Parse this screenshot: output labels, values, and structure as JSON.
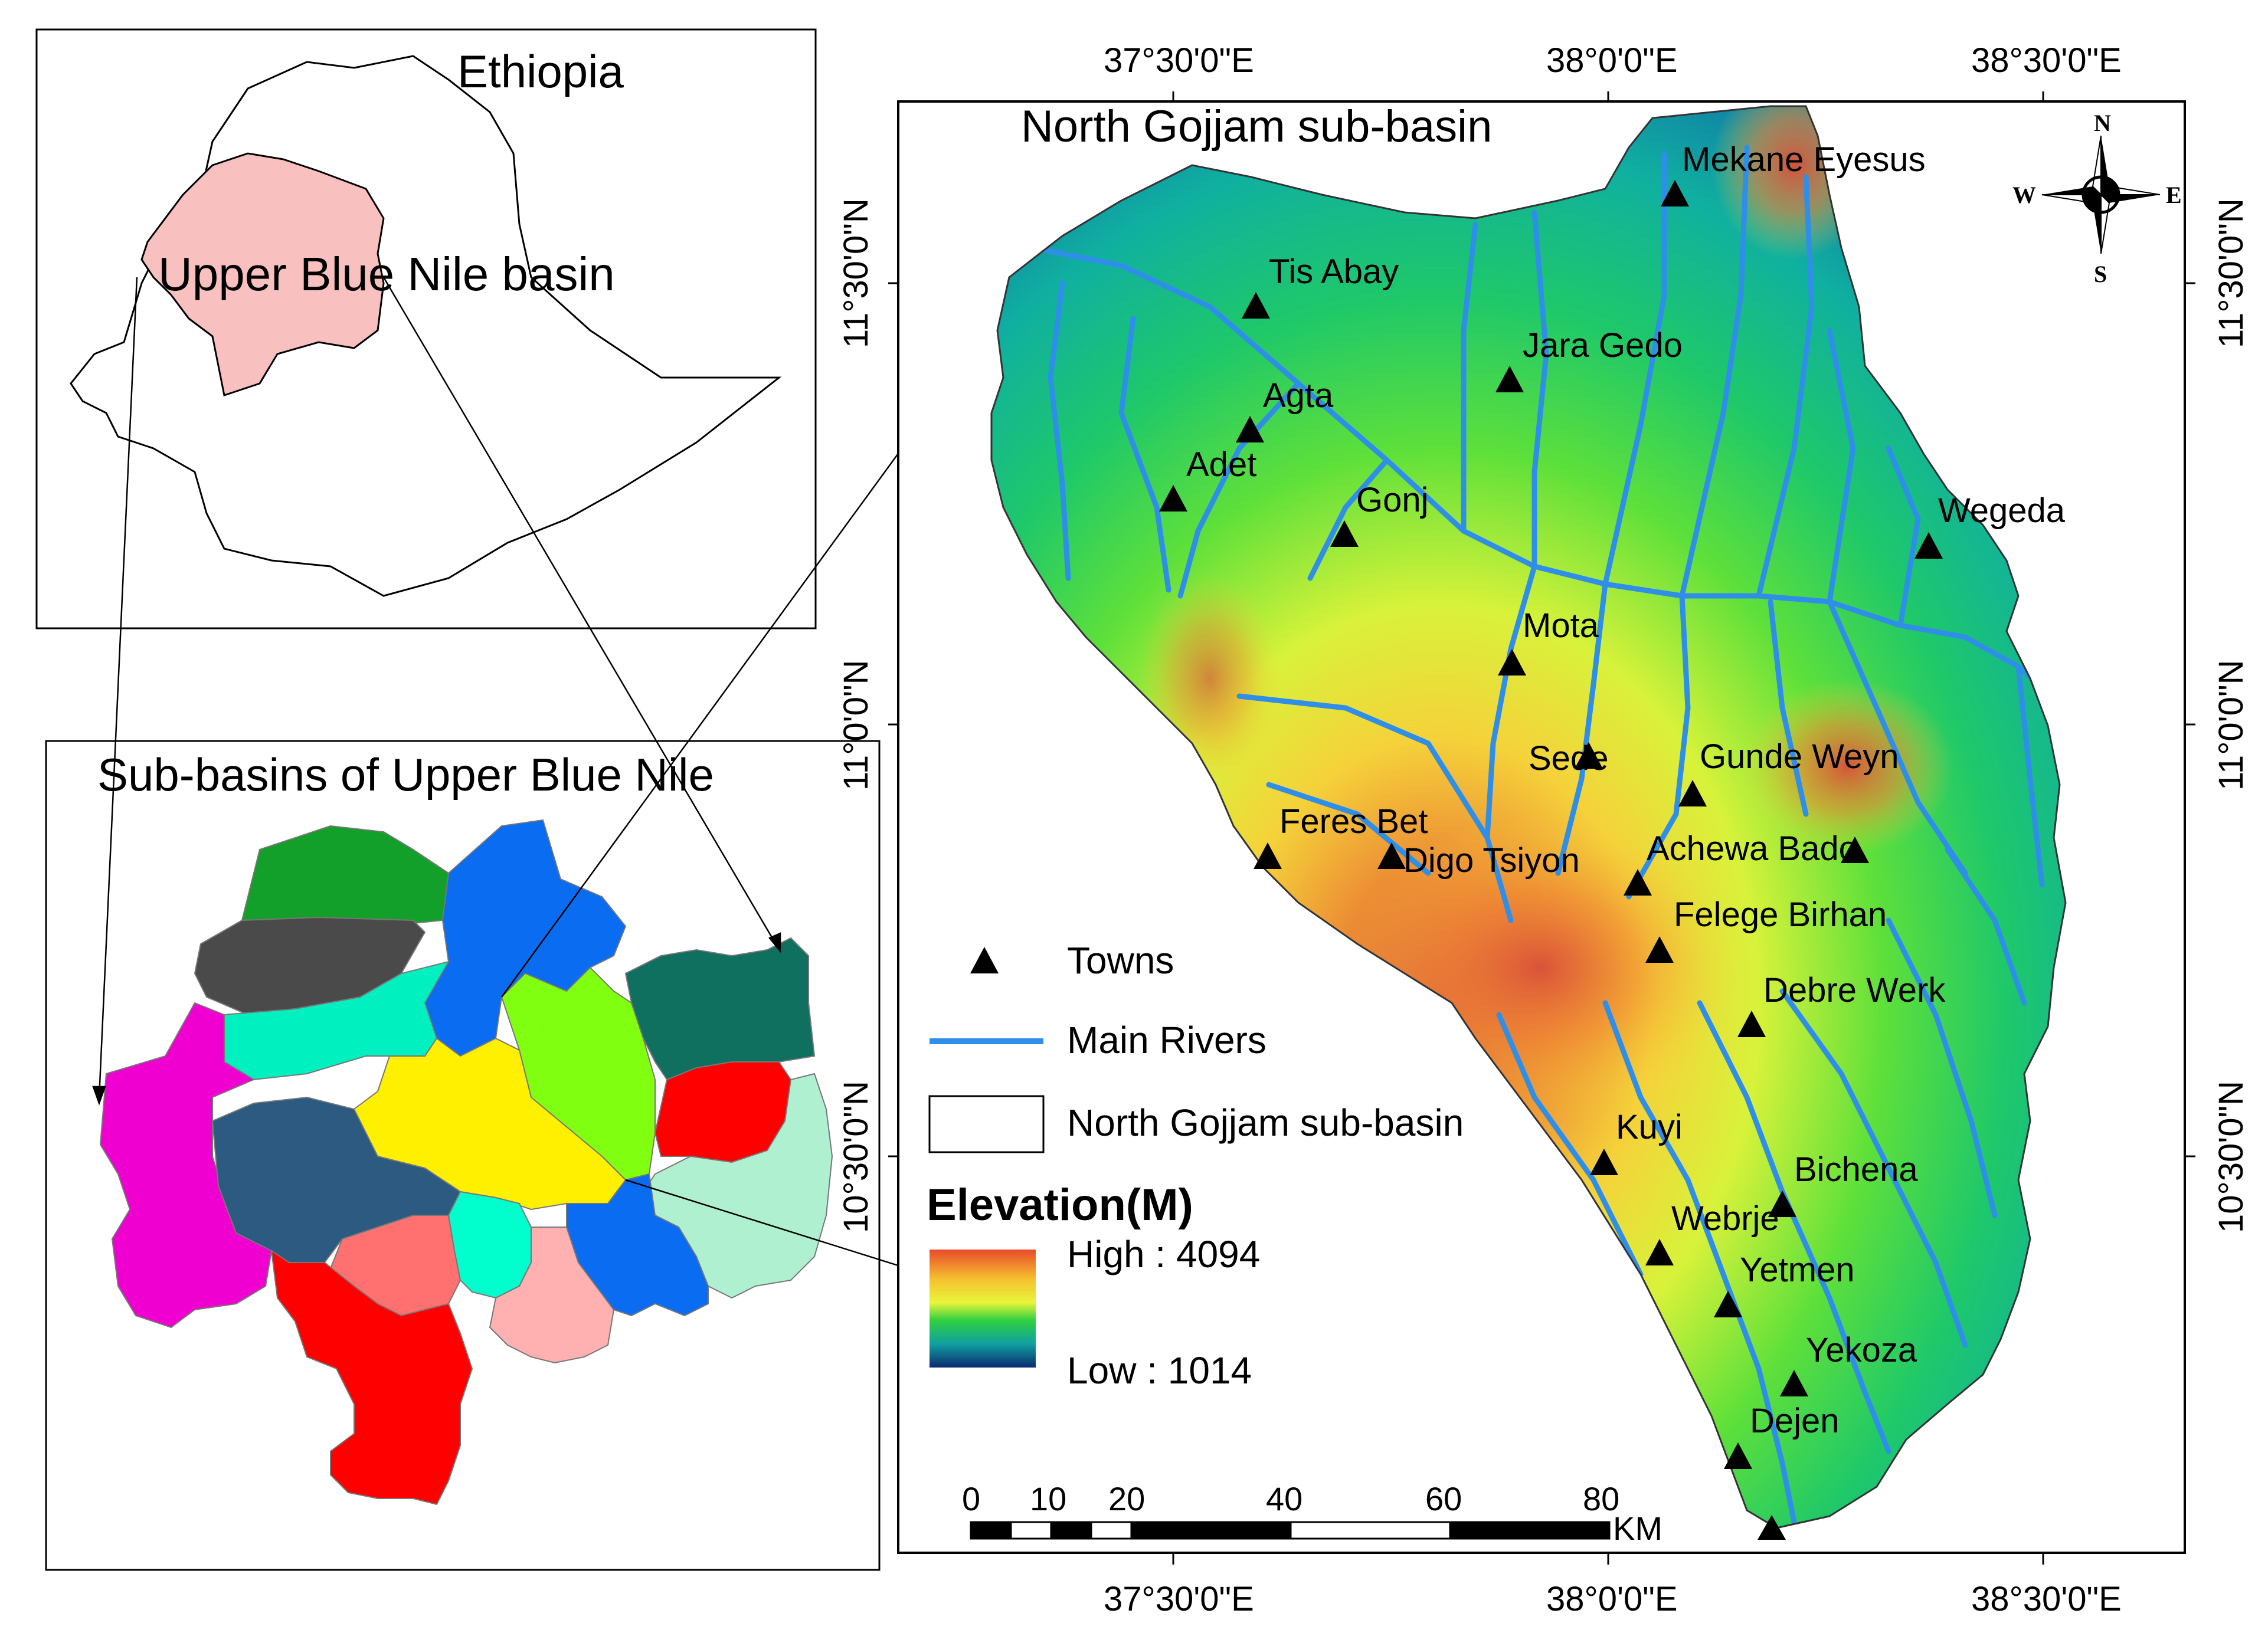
{
  "inset_ethiopia": {
    "country_label": "Ethiopia",
    "basin_label": "Upper Blue Nile basin"
  },
  "inset_subbasins": {
    "title": "Sub-basins of Upper Blue Nile",
    "subbasin_colors": [
      "#13a02a",
      "#4a4a4a",
      "#0a6cf0",
      "#00f0c0",
      "#f000d0",
      "#80ff10",
      "#107060",
      "#fff000",
      "#ff0000",
      "#aef0d0",
      "#2c5a80",
      "#ff7070",
      "#00ffcc",
      "#ffb0b0",
      "#0a6cf0",
      "#ff0000"
    ]
  },
  "main_map": {
    "title": "North Gojjam sub-basin",
    "top_lon_labels": [
      "37°30'0\"E",
      "38°0'0\"E",
      "38°30'0\"E"
    ],
    "bottom_lon_labels": [
      "37°30'0\"E",
      "38°0'0\"E",
      "38°30'0\"E"
    ],
    "left_lat_labels": [
      "11°30'0\"N",
      "11°0'0\"N",
      "10°30'0\"N"
    ],
    "right_lat_labels": [
      "11°30'0\"N",
      "11°0'0\"N",
      "10°30'0\"N"
    ],
    "compass": {
      "n": "N",
      "s": "S",
      "e": "E",
      "w": "W"
    },
    "towns": [
      {
        "name": "Mekane Eyesus"
      },
      {
        "name": "Tis Abay"
      },
      {
        "name": "Jara Gedo"
      },
      {
        "name": "Agta"
      },
      {
        "name": "Adet"
      },
      {
        "name": "Gonj"
      },
      {
        "name": "Wegeda"
      },
      {
        "name": "Mota"
      },
      {
        "name": "Sede"
      },
      {
        "name": "Gunde Weyn"
      },
      {
        "name": "Feres Bet"
      },
      {
        "name": "Digo Tsiyon"
      },
      {
        "name": "Achewa Bado"
      },
      {
        "name": "Felege Birhan"
      },
      {
        "name": "Debre Werk"
      },
      {
        "name": "Kuyi"
      },
      {
        "name": "Bichena"
      },
      {
        "name": "Webrje"
      },
      {
        "name": "Yetmen"
      },
      {
        "name": "Yekoza"
      },
      {
        "name": "Dejen"
      }
    ],
    "legend": {
      "towns": "Towns",
      "rivers": "Main Rivers",
      "subbasin": "North Gojjam sub-basin",
      "elevation_title": "Elevation(M)",
      "high": "High : 4094",
      "low": "Low : 1014",
      "river_color": "#2f8fe8"
    },
    "scale_bar": {
      "ticks": [
        "0",
        "10",
        "20",
        "40",
        "60",
        "80"
      ],
      "unit": "KM"
    }
  }
}
